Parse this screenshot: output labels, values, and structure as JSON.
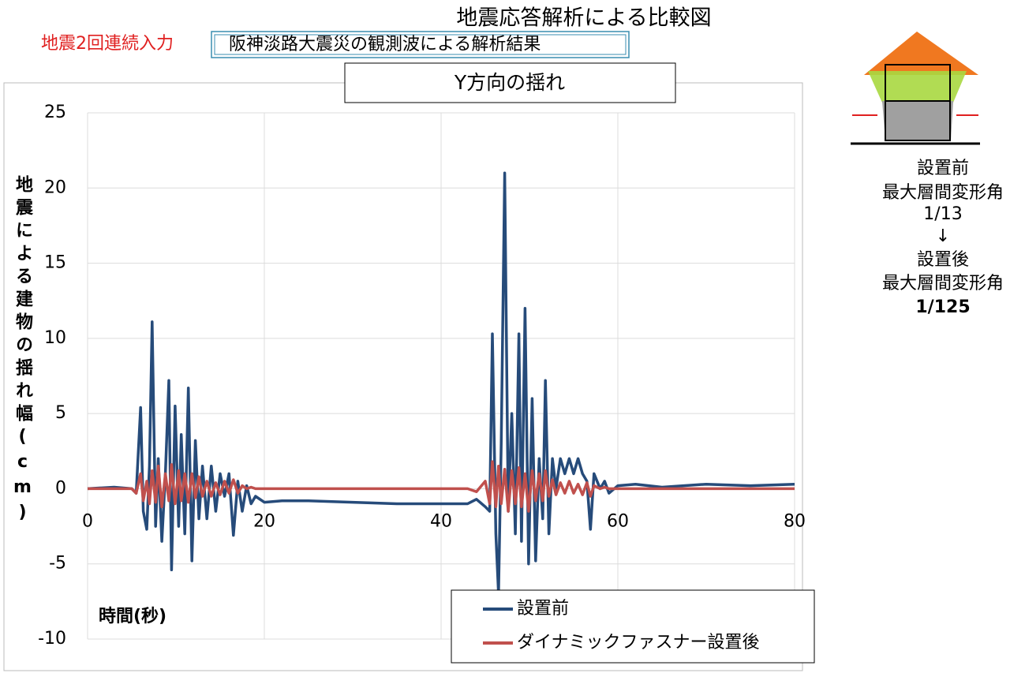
{
  "title": "地震応答解析による比較図",
  "input_label": "地震2回連続入力",
  "analysis_label": "阪神淡路大震災の観測波による解析結果",
  "chart_data": {
    "type": "line",
    "title": "Y方向の揺れ",
    "x_label": "時間(秒)",
    "y_label": "地震による建物の揺れ幅(cm)",
    "x": [
      0,
      3,
      5,
      5.5,
      6,
      6.3,
      6.7,
      7,
      7.3,
      7.7,
      8,
      8.4,
      8.8,
      9.2,
      9.5,
      9.9,
      10.3,
      10.6,
      11,
      11.4,
      11.8,
      12.2,
      12.6,
      13,
      13.5,
      14,
      14.5,
      15,
      15.5,
      16,
      16.5,
      17,
      17.5,
      18,
      18.5,
      19,
      20,
      22,
      25,
      30,
      35,
      40,
      43,
      44,
      45,
      45.5,
      45.8,
      46.2,
      46.5,
      46.8,
      47.2,
      47.6,
      48,
      48.4,
      48.8,
      49.1,
      49.5,
      49.9,
      50.3,
      50.7,
      51.1,
      51.5,
      51.8,
      52.2,
      52.6,
      53,
      53.5,
      54,
      54.5,
      55,
      55.5,
      56,
      56.5,
      56.9,
      57.3,
      58,
      58.5,
      59,
      60,
      62,
      65,
      70,
      75,
      80
    ],
    "series": [
      {
        "name": "設置前",
        "color": "#264b7a",
        "values": [
          0,
          0.1,
          0,
          -0.3,
          5.4,
          -1.5,
          -2.7,
          1.5,
          11.1,
          -2.5,
          2,
          -3.5,
          1,
          7.2,
          -5.4,
          5.5,
          -2.5,
          3.6,
          -3,
          6.7,
          -4.8,
          3.2,
          -2,
          1.5,
          -2,
          1.5,
          -1.5,
          1,
          -0.5,
          1,
          -3.1,
          0.5,
          -1.5,
          0.2,
          -1,
          -0.5,
          -0.9,
          -0.8,
          -0.8,
          -0.9,
          -1,
          -1,
          -1,
          -0.7,
          -1.2,
          -1.5,
          10.3,
          -3,
          -7,
          3,
          21,
          -1.5,
          5,
          -3,
          10.3,
          -3.5,
          12,
          -5,
          6,
          -4.8,
          2,
          -2,
          7.2,
          -3,
          2,
          0,
          2,
          1,
          2,
          1,
          2,
          1,
          0.5,
          -2.7,
          1,
          0,
          0.5,
          -0.3,
          0.2,
          0.3,
          0.1,
          0.3,
          0.2,
          0.3
        ]
      },
      {
        "name": "ダイナミックファスナー設置後",
        "color": "#c0504d",
        "values": [
          0,
          0,
          0,
          -0.3,
          1,
          -0.8,
          0.5,
          -1,
          1.2,
          -0.9,
          1.5,
          -1.2,
          1,
          -0.8,
          1.6,
          -1,
          1.2,
          -0.8,
          1,
          -0.9,
          1,
          -0.6,
          0.8,
          -0.5,
          0.5,
          -0.5,
          0.4,
          -0.4,
          0.5,
          -0.3,
          0.6,
          -0.3,
          0.2,
          0,
          0.1,
          0,
          0,
          0,
          0,
          0,
          0,
          0,
          0,
          -0.2,
          0.5,
          -1,
          1.8,
          -1.2,
          1.5,
          -1,
          1.3,
          -1.5,
          1.2,
          -1,
          1.4,
          -1.2,
          1,
          -1.5,
          1.2,
          -0.8,
          1,
          -0.8,
          1.2,
          -0.5,
          0.6,
          -0.4,
          0.4,
          -0.3,
          0.5,
          -0.3,
          0.3,
          -0.4,
          0.4,
          -0.5,
          0.2,
          0,
          0.1,
          0,
          0,
          0,
          0,
          0,
          0,
          0
        ]
      }
    ],
    "xlim": [
      0,
      80
    ],
    "ylim": [
      -10,
      25
    ],
    "xticks": [
      0,
      20,
      40,
      60,
      80
    ],
    "yticks": [
      -10,
      -5,
      0,
      5,
      10,
      15,
      20,
      25
    ],
    "grid": true,
    "legend": "lower right"
  },
  "side_notes": [
    "設置前",
    "最大層間変形角",
    "1/13",
    "↓",
    "設置後",
    "最大層間変形角",
    "1/125"
  ]
}
